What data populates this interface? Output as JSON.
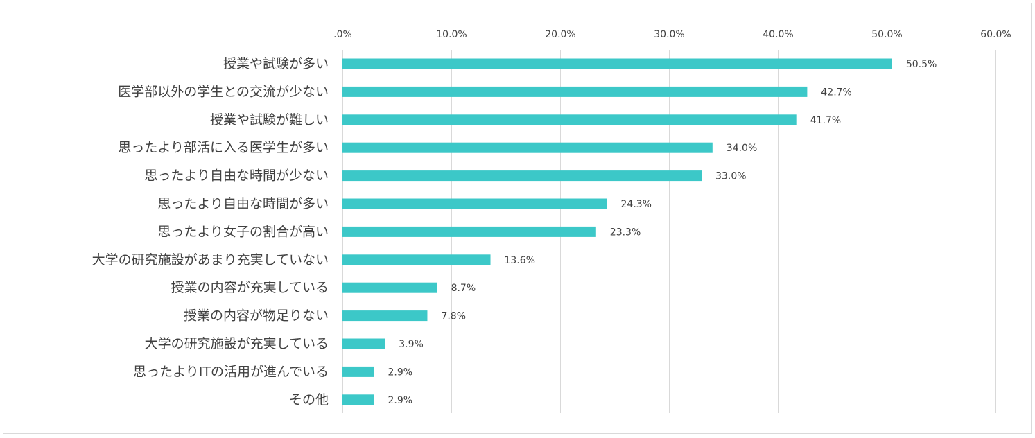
{
  "chart_data": {
    "type": "bar",
    "orientation": "horizontal",
    "title": "",
    "xlabel": "",
    "ylabel": "",
    "xlim": [
      0,
      60
    ],
    "grid": true,
    "tick_values": [
      0,
      10,
      20,
      30,
      40,
      50,
      60
    ],
    "tick_labels": [
      ".0%",
      "10.0%",
      "20.0%",
      "30.0%",
      "40.0%",
      "50.0%",
      "60.0%"
    ],
    "bar_color": "#3cc8c8",
    "categories": [
      "授業や試験が多い",
      "医学部以外の学生との交流が少ない",
      "授業や試験が難しい",
      "思ったより部活に入る医学生が多い",
      "思ったより自由な時間が少ない",
      "思ったより自由な時間が多い",
      "思ったより女子の割合が高い",
      "大学の研究施設があまり充実していない",
      "授業の内容が充実している",
      "授業の内容が物足りない",
      "大学の研究施設が充実している",
      "思ったよりITの活用が進んでいる",
      "その他"
    ],
    "values": [
      50.5,
      42.7,
      41.7,
      34.0,
      33.0,
      24.3,
      23.3,
      13.6,
      8.7,
      7.8,
      3.9,
      2.9,
      2.9
    ],
    "value_labels": [
      "50.5%",
      "42.7%",
      "41.7%",
      "34.0%",
      "33.0%",
      "24.3%",
      "23.3%",
      "13.6%",
      "8.7%",
      "7.8%",
      "3.9%",
      "2.9%",
      "2.9%"
    ]
  }
}
